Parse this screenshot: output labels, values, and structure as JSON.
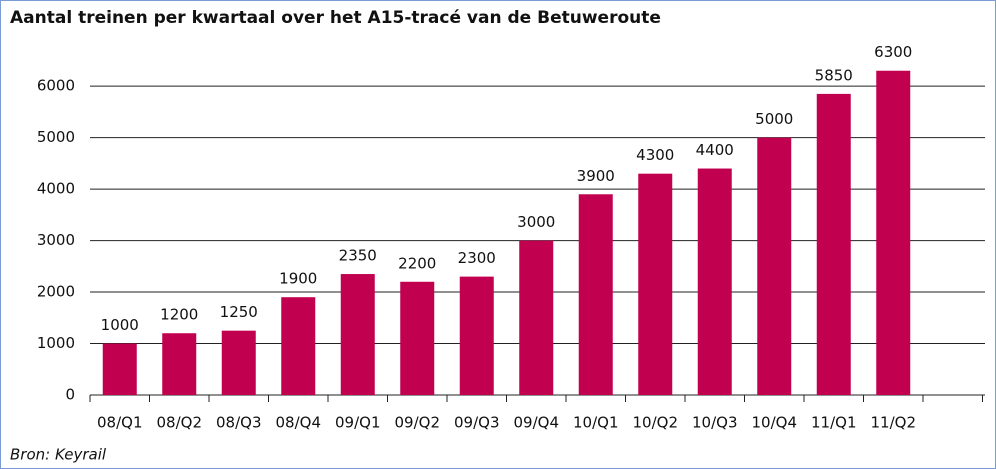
{
  "chart_data": {
    "type": "bar",
    "title": "Aantal treinen per kwartaal over het A15-tracé van de Betuweroute",
    "categories": [
      "08/Q1",
      "08/Q2",
      "08/Q3",
      "08/Q4",
      "09/Q1",
      "09/Q2",
      "09/Q3",
      "09/Q4",
      "10/Q1",
      "10/Q2",
      "10/Q3",
      "10/Q4",
      "11/Q1",
      "11/Q2"
    ],
    "values": [
      1000,
      1200,
      1250,
      1900,
      2350,
      2200,
      2300,
      3000,
      3900,
      4300,
      4400,
      5000,
      5850,
      6300
    ],
    "color": "#c1004f",
    "ylim": [
      0,
      6800
    ],
    "yticks": [
      0,
      1000,
      2000,
      3000,
      4000,
      5000,
      6000
    ],
    "grid": true,
    "source": "Bron: Keyrail"
  }
}
